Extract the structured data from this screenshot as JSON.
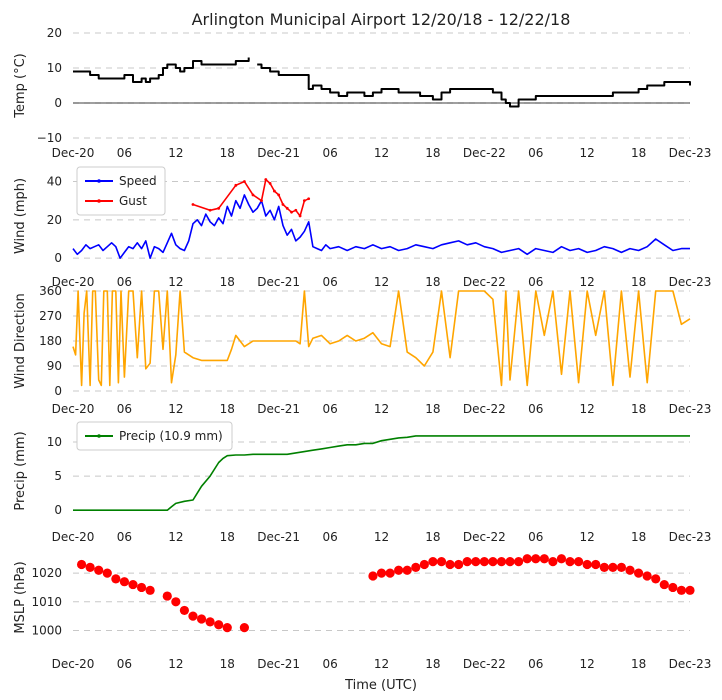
{
  "title": "Arlington Municipal Airport 12/20/18 - 12/22/18",
  "xlabel": "Time (UTC)",
  "x_tick_labels": [
    "Dec-20",
    "06",
    "12",
    "18",
    "Dec-21",
    "06",
    "12",
    "18",
    "Dec-22",
    "06",
    "12",
    "18",
    "Dec-23"
  ],
  "chart_data": [
    {
      "type": "line",
      "name": "temperature",
      "ylabel": "Temp (°C)",
      "x_unit": "hours since 2018-12-20 00:00 UTC",
      "xlim": [
        0,
        72
      ],
      "ylim": [
        -10,
        20
      ],
      "yticks": [
        "−10",
        "0",
        "10",
        "20"
      ],
      "ytick_values": [
        -10,
        0,
        10,
        20
      ],
      "grid": true,
      "series": [
        {
          "name": "Temp",
          "color": "#000000",
          "step": true,
          "x": [
            0,
            1,
            2,
            3,
            4,
            5,
            5.5,
            6,
            7,
            8,
            8.5,
            9,
            9.5,
            10,
            10.5,
            11,
            12,
            12.5,
            13,
            14,
            15,
            16,
            17,
            18,
            19,
            20,
            20.5,
            21,
            21.5,
            22,
            23,
            24,
            25,
            26,
            27,
            27.5,
            28,
            29,
            30,
            31,
            32,
            33,
            34,
            35,
            36,
            37,
            38,
            39,
            40,
            40.5,
            41,
            42,
            43,
            44,
            45,
            46,
            47,
            48,
            49,
            50,
            50.5,
            51,
            52,
            53,
            53.5,
            54,
            55,
            56,
            57,
            58,
            59,
            60,
            61,
            62,
            63,
            64,
            65,
            66,
            67,
            68,
            69,
            70,
            71,
            72
          ],
          "y": [
            9,
            9,
            8,
            7,
            7,
            7,
            7,
            8,
            6,
            7,
            6,
            7,
            7,
            8,
            10,
            11,
            10,
            9,
            10,
            12,
            11,
            11,
            11,
            11,
            12,
            12,
            13,
            null,
            11,
            10,
            9,
            8,
            8,
            8,
            8,
            4,
            5,
            4,
            3,
            2,
            3,
            3,
            2,
            3,
            4,
            4,
            3,
            3,
            3,
            2,
            2,
            1,
            3,
            4,
            4,
            4,
            4,
            4,
            3,
            1,
            0,
            -1,
            1,
            1,
            1,
            2,
            2,
            2,
            2,
            2,
            2,
            2,
            2,
            2,
            3,
            3,
            3,
            4,
            5,
            5,
            6,
            6,
            6,
            5
          ]
        }
      ]
    },
    {
      "type": "line",
      "name": "wind",
      "ylabel": "Wind (mph)",
      "xlim": [
        0,
        72
      ],
      "ylim": [
        -2,
        46
      ],
      "yticks": [
        "0",
        "20",
        "40"
      ],
      "ytick_values": [
        0,
        20,
        40
      ],
      "grid": true,
      "legend": "upper-left",
      "series": [
        {
          "name": "Speed",
          "color": "#0000ff",
          "x": [
            0,
            0.5,
            1,
            1.5,
            2,
            2.5,
            3,
            3.5,
            4,
            4.5,
            5,
            5.5,
            6,
            6.5,
            7,
            7.5,
            8,
            8.5,
            9,
            9.5,
            10,
            10.5,
            11,
            11.5,
            12,
            12.5,
            13,
            13.5,
            14,
            14.5,
            15,
            15.5,
            16,
            16.5,
            17,
            17.5,
            18,
            18.5,
            19,
            19.5,
            20,
            20.5,
            21,
            21.5,
            22,
            22.5,
            23,
            23.5,
            24,
            24.5,
            25,
            25.5,
            26,
            26.5,
            27,
            27.5,
            28,
            28.5,
            29,
            29.5,
            30,
            31,
            32,
            33,
            34,
            35,
            36,
            37,
            38,
            39,
            40,
            41,
            42,
            43,
            44,
            45,
            46,
            47,
            48,
            49,
            50,
            51,
            52,
            53,
            54,
            55,
            56,
            57,
            58,
            59,
            60,
            61,
            62,
            63,
            64,
            65,
            66,
            67,
            68,
            69,
            70,
            71,
            72
          ],
          "y": [
            5,
            2,
            4,
            7,
            5,
            6,
            7,
            4,
            6,
            8,
            6,
            0,
            3,
            6,
            5,
            8,
            5,
            9,
            0,
            6,
            5,
            3,
            8,
            13,
            7,
            5,
            4,
            9,
            18,
            20,
            17,
            23,
            19,
            17,
            21,
            18,
            27,
            22,
            30,
            26,
            33,
            28,
            24,
            26,
            30,
            22,
            25,
            20,
            27,
            17,
            12,
            15,
            9,
            11,
            14,
            19,
            6,
            5,
            4,
            7,
            5,
            6,
            4,
            6,
            5,
            7,
            5,
            6,
            4,
            5,
            7,
            6,
            5,
            7,
            8,
            9,
            7,
            8,
            6,
            5,
            3,
            4,
            5,
            2,
            5,
            4,
            3,
            6,
            4,
            5,
            3,
            4,
            6,
            5,
            3,
            5,
            4,
            6,
            10,
            7,
            4,
            5,
            5
          ]
        },
        {
          "name": "Gust",
          "color": "#ff0000",
          "x": [
            14,
            16,
            17,
            19,
            20,
            21,
            22,
            22.5,
            23,
            23.5,
            24,
            24.5,
            25,
            25.5,
            26,
            26.5,
            27,
            27.5
          ],
          "y": [
            28,
            25,
            26,
            38,
            40,
            33,
            30,
            41,
            39,
            35,
            33,
            28,
            26,
            24,
            25,
            22,
            30,
            31
          ]
        }
      ]
    },
    {
      "type": "line",
      "name": "wind-direction",
      "ylabel": "Wind Direction",
      "xlim": [
        0,
        72
      ],
      "ylim": [
        0,
        360
      ],
      "yticks": [
        "0",
        "90",
        "180",
        "270",
        "360"
      ],
      "ytick_values": [
        0,
        90,
        180,
        270,
        360
      ],
      "grid": true,
      "series": [
        {
          "name": "Direction",
          "color": "#ffa500",
          "x": [
            0,
            0.3,
            0.6,
            1,
            1.3,
            1.6,
            2,
            2.3,
            2.6,
            3,
            3.3,
            3.6,
            4,
            4.3,
            4.6,
            5,
            5.3,
            5.6,
            6,
            6.5,
            7,
            7.5,
            8,
            8.5,
            9,
            9.5,
            10,
            10.5,
            11,
            11.5,
            12,
            12.5,
            13,
            14,
            15,
            16,
            17,
            18,
            18.5,
            19,
            20,
            21,
            22,
            23,
            24,
            25,
            26,
            26.5,
            27,
            27.5,
            28,
            29,
            30,
            31,
            32,
            33,
            34,
            35,
            36,
            37,
            38,
            39,
            40,
            41,
            42,
            43,
            44,
            45,
            46,
            47,
            48,
            49,
            50,
            50.5,
            51,
            52,
            53,
            54,
            55,
            56,
            57,
            58,
            59,
            60,
            61,
            62,
            63,
            64,
            65,
            66,
            67,
            68,
            69,
            70,
            71,
            72
          ],
          "y": [
            160,
            130,
            360,
            20,
            280,
            360,
            20,
            360,
            360,
            40,
            20,
            360,
            360,
            20,
            360,
            360,
            30,
            360,
            50,
            360,
            360,
            120,
            360,
            80,
            100,
            360,
            360,
            150,
            360,
            30,
            130,
            360,
            140,
            120,
            110,
            110,
            110,
            110,
            150,
            200,
            160,
            180,
            180,
            180,
            180,
            180,
            180,
            170,
            360,
            160,
            190,
            200,
            170,
            180,
            200,
            180,
            190,
            210,
            170,
            160,
            360,
            140,
            120,
            90,
            140,
            360,
            120,
            360,
            360,
            360,
            360,
            330,
            20,
            360,
            40,
            360,
            20,
            360,
            200,
            360,
            60,
            360,
            30,
            360,
            200,
            360,
            20,
            360,
            50,
            360,
            30,
            360,
            360,
            360,
            240,
            260
          ]
        }
      ]
    },
    {
      "type": "line",
      "name": "precipitation",
      "ylabel": "Precip (mm)",
      "xlim": [
        0,
        72
      ],
      "ylim": [
        -1,
        12.5
      ],
      "yticks": [
        "0",
        "5",
        "10"
      ],
      "ytick_values": [
        0,
        5,
        10
      ],
      "grid": true,
      "legend": "upper-left",
      "series": [
        {
          "name": "Precip (10.9 mm)",
          "color": "#008000",
          "x": [
            0,
            11,
            11.5,
            12,
            13,
            14,
            14.5,
            15,
            16,
            17,
            17.5,
            18,
            19,
            20,
            21,
            22,
            23,
            24,
            25,
            26,
            27,
            28,
            29,
            30,
            31,
            32,
            33,
            34,
            35,
            36,
            37,
            38,
            39,
            40,
            41,
            42,
            43,
            44,
            48,
            54,
            60,
            66,
            72
          ],
          "y": [
            0,
            0,
            0.5,
            1,
            1.3,
            1.5,
            2.5,
            3.5,
            5,
            7,
            7.6,
            8,
            8.1,
            8.1,
            8.2,
            8.2,
            8.2,
            8.2,
            8.2,
            8.4,
            8.6,
            8.8,
            9,
            9.2,
            9.4,
            9.6,
            9.6,
            9.8,
            9.8,
            10.2,
            10.4,
            10.6,
            10.7,
            10.9,
            10.9,
            10.9,
            10.9,
            10.9,
            10.9,
            10.9,
            10.9,
            10.9,
            10.9
          ]
        }
      ]
    },
    {
      "type": "scatter",
      "name": "mslp",
      "ylabel": "MSLP (hPa)",
      "xlim": [
        0,
        72
      ],
      "ylim": [
        996,
        1027
      ],
      "yticks": [
        "1000",
        "1010",
        "1020"
      ],
      "ytick_values": [
        1000,
        1010,
        1020
      ],
      "grid": true,
      "series": [
        {
          "name": "MSLP",
          "color": "#ff0000",
          "x": [
            1,
            2,
            3,
            4,
            5,
            6,
            7,
            8,
            9,
            11,
            12,
            13,
            14,
            15,
            16,
            17,
            18,
            20,
            35,
            36,
            37,
            38,
            39,
            40,
            41,
            42,
            43,
            44,
            45,
            46,
            47,
            48,
            49,
            50,
            51,
            52,
            53,
            54,
            55,
            56,
            57,
            58,
            59,
            60,
            61,
            62,
            63,
            64,
            65,
            66,
            67,
            68,
            69,
            70,
            71,
            72
          ],
          "y": [
            1023,
            1022,
            1021,
            1020,
            1018,
            1017,
            1016,
            1015,
            1014,
            1012,
            1010,
            1007,
            1005,
            1004,
            1003,
            1002,
            1001,
            1001,
            1019,
            1020,
            1020,
            1021,
            1021,
            1022,
            1023,
            1024,
            1024,
            1023,
            1023,
            1024,
            1024,
            1024,
            1024,
            1024,
            1024,
            1024,
            1025,
            1025,
            1025,
            1024,
            1025,
            1024,
            1024,
            1023,
            1023,
            1022,
            1022,
            1022,
            1021,
            1020,
            1019,
            1018,
            1016,
            1015,
            1014,
            1014
          ]
        }
      ]
    }
  ]
}
